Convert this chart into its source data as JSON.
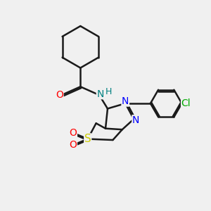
{
  "bg_color": "#f0f0f0",
  "line_color": "#1a1a1a",
  "bond_width": 1.8,
  "atom_colors": {
    "O": "#ff0000",
    "N": "#0000ff",
    "N_amide": "#008080",
    "S": "#cccc00",
    "Cl": "#00aa00"
  }
}
